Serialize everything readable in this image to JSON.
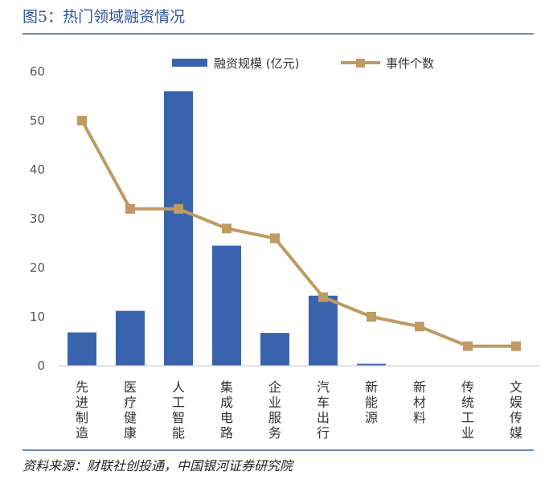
{
  "header": {
    "title": "图5：热门领域融资情况"
  },
  "footer": {
    "source": "资料来源：财联社创投通，中国银河证券研究院"
  },
  "colors": {
    "bar": "#3a63ad",
    "line": "#bf9a63",
    "marker": "#bf9a63"
  },
  "chart_data": {
    "type": "bar+line",
    "title": "",
    "categories": [
      "先进制造",
      "医疗健康",
      "人工智能",
      "集成电路",
      "企业服务",
      "汽车出行",
      "新能源",
      "新材料",
      "传统工业",
      "文娱传媒"
    ],
    "series": [
      {
        "name": "融资规模 (亿元)",
        "kind": "bar",
        "values": [
          6.8,
          11.2,
          56,
          24.5,
          6.7,
          14.3,
          0.4,
          null,
          null,
          null
        ]
      },
      {
        "name": "事件个数",
        "kind": "line",
        "values": [
          50,
          32,
          32,
          28,
          26,
          14,
          10,
          8,
          4,
          4
        ]
      }
    ],
    "ylim": [
      0,
      60
    ],
    "yticks": [
      0,
      10,
      20,
      30,
      40,
      50,
      60
    ],
    "legend": "top-center",
    "grid": false
  }
}
